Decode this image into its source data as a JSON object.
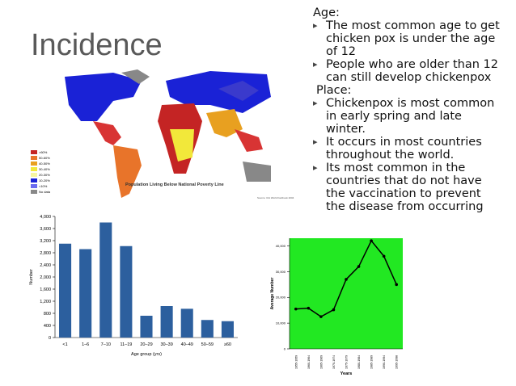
{
  "title": "Incidence",
  "map": {
    "caption": "Population Living Below National Poverty Line",
    "source": "Source: CIA World Factbook 2004",
    "legend": [
      ">60%",
      "50-60%",
      "40-50%",
      "30-40%",
      "20-30%",
      "10-20%",
      "<10%",
      "No data"
    ]
  },
  "text": {
    "heading1": "Age:",
    "bullets1": [
      "The most common age to get chicken pox is under the age of 12",
      "People who are older than 12 can still develop chickenpox"
    ],
    "heading2": "Place:",
    "bullets2": [
      "Chickenpox is most common in early spring and late winter.",
      "It occurs in most countries throughout the world.",
      "Its most common in the countries that do not have the vaccination to prevent the disease from occurring"
    ]
  },
  "chart_data": [
    {
      "type": "bar",
      "x_label": "Age group (yrs)",
      "y_label": "Number",
      "color": "#2c5f9e",
      "categories": [
        "<1",
        "1–6",
        "7–10",
        "11–19",
        "20–29",
        "30–39",
        "40–49",
        "50–59",
        "≥60"
      ],
      "values": [
        3100,
        2920,
        3800,
        3020,
        720,
        1040,
        950,
        580,
        540
      ],
      "ylim": [
        0,
        4000
      ],
      "yticks": [
        0,
        400,
        800,
        {
          "value": 1200,
          "label": "1,200"
        },
        {
          "value": 1600,
          "label": "1,600"
        },
        {
          "value": 2000,
          "label": "2,000"
        },
        {
          "value": 2400,
          "label": "2,400"
        },
        {
          "value": 2800,
          "label": "2,800"
        },
        {
          "value": 3200,
          "label": "3,200"
        },
        {
          "value": 3600,
          "label": "3,600"
        },
        {
          "value": 4000,
          "label": "4,000"
        }
      ]
    },
    {
      "type": "line",
      "x_label": "Years",
      "y_label": "Average Number",
      "color": "#000000",
      "background": "#22e822",
      "categories": [
        "1955-1959",
        "1960-1964",
        "1965-1969",
        "1970-1974",
        "1975-1979",
        "1980-1984",
        "1985-1989",
        "1990-1994",
        "1995-1998"
      ],
      "values": [
        15500,
        15800,
        12500,
        15200,
        27000,
        32000,
        42000,
        36000,
        25000
      ],
      "ylim": [
        0,
        43000
      ],
      "yticks": [
        0,
        {
          "value": 10000,
          "label": "10,000"
        },
        {
          "value": 20000,
          "label": "20,000"
        },
        {
          "value": 30000,
          "label": "30,000"
        },
        {
          "value": 40000,
          "label": "40,000"
        }
      ]
    }
  ]
}
